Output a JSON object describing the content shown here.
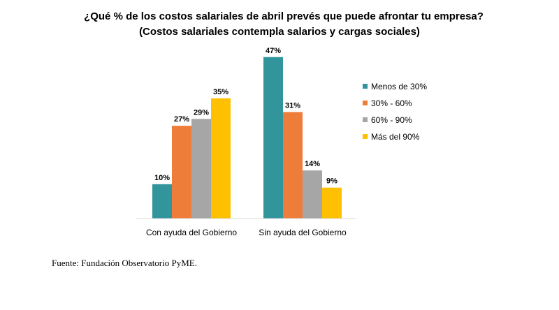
{
  "header": {
    "title_line1": "¿Qué % de los costos salariales de abril prevés que puede afrontar tu empresa?",
    "title_line2": "(Costos salariales contempla salarios y cargas sociales)"
  },
  "footer": {
    "source": "Fuente: Fundación Observatorio PyME."
  },
  "chart_data": {
    "type": "bar",
    "title": "¿Qué % de los costos salariales de abril prevés que puede afrontar tu empresa? (Costos salariales contempla salarios y cargas sociales)",
    "categories": [
      "Con ayuda del Gobierno",
      "Sin ayuda del Gobierno"
    ],
    "series": [
      {
        "name": "Menos de 30%",
        "color": "#31959b",
        "values": [
          10,
          47
        ],
        "labels": [
          "10%",
          "47%"
        ]
      },
      {
        "name": "30% - 60%",
        "color": "#ef7d3a",
        "values": [
          27,
          31
        ],
        "labels": [
          "27%",
          "31%"
        ]
      },
      {
        "name": "60% - 90%",
        "color": "#a6a6a6",
        "values": [
          29,
          14
        ],
        "labels": [
          "29%",
          "14%"
        ]
      },
      {
        "name": "Más del 90%",
        "color": "#fec000",
        "values": [
          35,
          9
        ],
        "labels": [
          "35%",
          "9%"
        ]
      }
    ],
    "xlabel": "",
    "ylabel": "",
    "ylim": [
      0,
      50
    ],
    "grid": false,
    "legend_position": "right"
  }
}
